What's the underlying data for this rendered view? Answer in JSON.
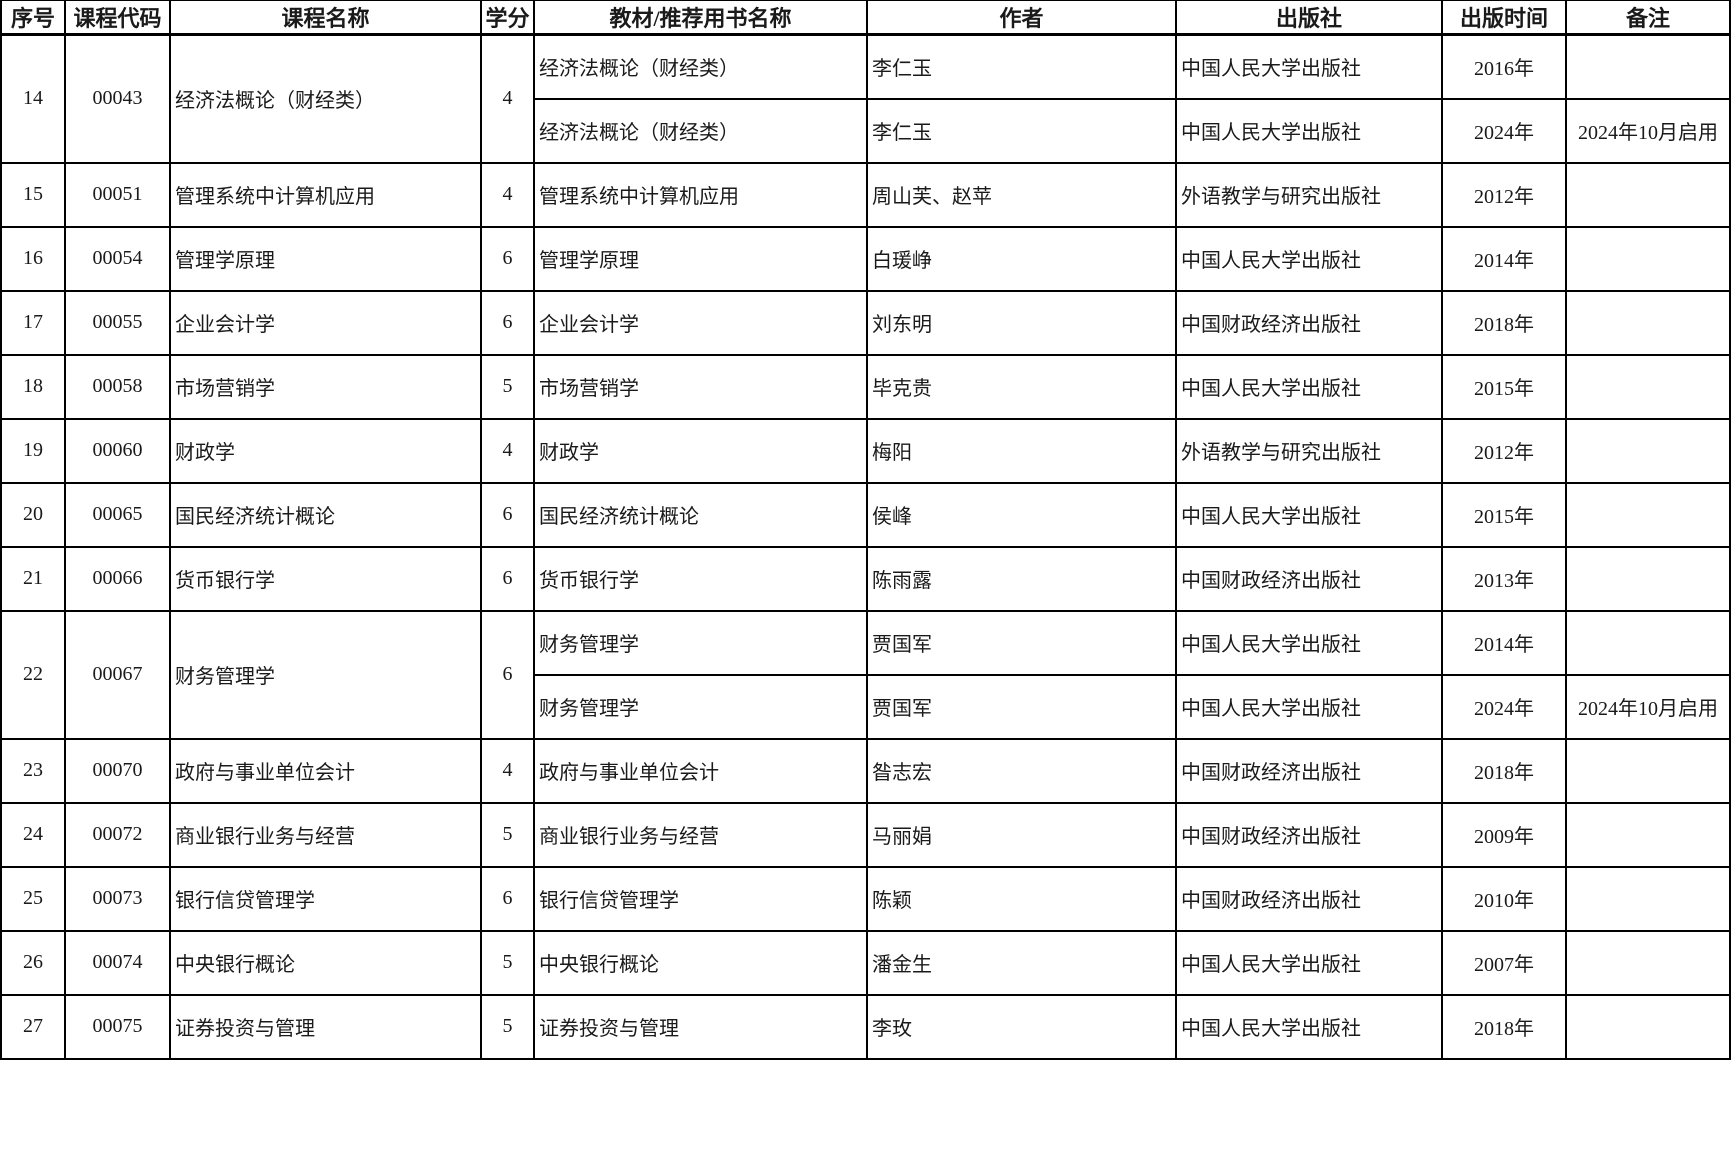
{
  "colors": {
    "border": "#000000",
    "text": "#1a1a1a",
    "background": "#ffffff"
  },
  "table": {
    "columns": [
      {
        "key": "no",
        "label": "序号"
      },
      {
        "key": "code",
        "label": "课程代码"
      },
      {
        "key": "name",
        "label": "课程名称"
      },
      {
        "key": "credits",
        "label": "学分"
      },
      {
        "key": "book",
        "label": "教材/推荐用书名称"
      },
      {
        "key": "author",
        "label": "作者"
      },
      {
        "key": "publisher",
        "label": "出版社"
      },
      {
        "key": "year",
        "label": "出版时间"
      },
      {
        "key": "note",
        "label": "备注"
      }
    ],
    "rows": [
      {
        "no": "14",
        "code": "00043",
        "name": "经济法概论（财经类）",
        "credits": "4",
        "books": [
          {
            "title": "经济法概论（财经类）",
            "author": "李仁玉",
            "publisher": "中国人民大学出版社",
            "year": "2016年",
            "note": ""
          },
          {
            "title": "经济法概论（财经类）",
            "author": "李仁玉",
            "publisher": "中国人民大学出版社",
            "year": "2024年",
            "note": "2024年10月启用"
          }
        ]
      },
      {
        "no": "15",
        "code": "00051",
        "name": "管理系统中计算机应用",
        "credits": "4",
        "books": [
          {
            "title": "管理系统中计算机应用",
            "author": "周山芙、赵苹",
            "publisher": "外语教学与研究出版社",
            "year": "2012年",
            "note": ""
          }
        ]
      },
      {
        "no": "16",
        "code": "00054",
        "name": "管理学原理",
        "credits": "6",
        "books": [
          {
            "title": "管理学原理",
            "author": "白瑗峥",
            "publisher": "中国人民大学出版社",
            "year": "2014年",
            "note": ""
          }
        ]
      },
      {
        "no": "17",
        "code": "00055",
        "name": "企业会计学",
        "credits": "6",
        "books": [
          {
            "title": "企业会计学",
            "author": "刘东明",
            "publisher": "中国财政经济出版社",
            "year": "2018年",
            "note": ""
          }
        ]
      },
      {
        "no": "18",
        "code": "00058",
        "name": "市场营销学",
        "credits": "5",
        "books": [
          {
            "title": "市场营销学",
            "author": "毕克贵",
            "publisher": "中国人民大学出版社",
            "year": "2015年",
            "note": ""
          }
        ]
      },
      {
        "no": "19",
        "code": "00060",
        "name": "财政学",
        "credits": "4",
        "books": [
          {
            "title": "财政学",
            "author": "梅阳",
            "publisher": "外语教学与研究出版社",
            "year": "2012年",
            "note": ""
          }
        ]
      },
      {
        "no": "20",
        "code": "00065",
        "name": "国民经济统计概论",
        "credits": "6",
        "books": [
          {
            "title": "国民经济统计概论",
            "author": "侯峰",
            "publisher": "中国人民大学出版社",
            "year": "2015年",
            "note": ""
          }
        ]
      },
      {
        "no": "21",
        "code": "00066",
        "name": "货币银行学",
        "credits": "6",
        "books": [
          {
            "title": "货币银行学",
            "author": "陈雨露",
            "publisher": "中国财政经济出版社",
            "year": "2013年",
            "note": ""
          }
        ]
      },
      {
        "no": "22",
        "code": "00067",
        "name": "财务管理学",
        "credits": "6",
        "books": [
          {
            "title": "财务管理学",
            "author": "贾国军",
            "publisher": "中国人民大学出版社",
            "year": "2014年",
            "note": ""
          },
          {
            "title": "财务管理学",
            "author": "贾国军",
            "publisher": "中国人民大学出版社",
            "year": "2024年",
            "note": "2024年10月启用"
          }
        ]
      },
      {
        "no": "23",
        "code": "00070",
        "name": "政府与事业单位会计",
        "credits": "4",
        "books": [
          {
            "title": "政府与事业单位会计",
            "author": "昝志宏",
            "publisher": "中国财政经济出版社",
            "year": "2018年",
            "note": ""
          }
        ]
      },
      {
        "no": "24",
        "code": "00072",
        "name": "商业银行业务与经营",
        "credits": "5",
        "books": [
          {
            "title": "商业银行业务与经营",
            "author": "马丽娟",
            "publisher": "中国财政经济出版社",
            "year": "2009年",
            "note": ""
          }
        ]
      },
      {
        "no": "25",
        "code": "00073",
        "name": "银行信贷管理学",
        "credits": "6",
        "books": [
          {
            "title": "银行信贷管理学",
            "author": "陈颖",
            "publisher": "中国财政经济出版社",
            "year": "2010年",
            "note": ""
          }
        ]
      },
      {
        "no": "26",
        "code": "00074",
        "name": "中央银行概论",
        "credits": "5",
        "books": [
          {
            "title": "中央银行概论",
            "author": "潘金生",
            "publisher": "中国人民大学出版社",
            "year": "2007年",
            "note": ""
          }
        ]
      },
      {
        "no": "27",
        "code": "00075",
        "name": "证券投资与管理",
        "credits": "5",
        "books": [
          {
            "title": "证券投资与管理",
            "author": "李玫",
            "publisher": "中国人民大学出版社",
            "year": "2018年",
            "note": ""
          }
        ]
      }
    ]
  }
}
